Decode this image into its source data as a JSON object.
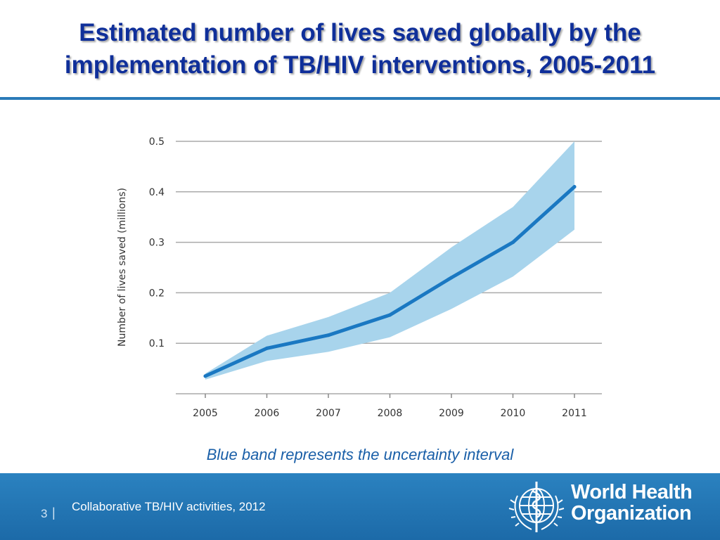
{
  "header": {
    "title_line1": "Estimated number of lives saved globally by the",
    "title_line2": "implementation of TB/HIV interventions, 2005-2011"
  },
  "chart_data": {
    "type": "line",
    "title": "Estimated number of lives saved globally by the implementation of TB/HIV interventions, 2005-2011",
    "xlabel": "",
    "ylabel": "Number of lives saved (millions)",
    "x": [
      "2005",
      "2006",
      "2007",
      "2008",
      "2009",
      "2010",
      "2011"
    ],
    "series": [
      {
        "name": "Estimate",
        "values": [
          0.035,
          0.09,
          0.116,
          0.156,
          0.23,
          0.3,
          0.41
        ]
      },
      {
        "name": "Uncertainty upper",
        "values": [
          0.04,
          0.115,
          0.152,
          0.2,
          0.29,
          0.37,
          0.5
        ]
      },
      {
        "name": "Uncertainty lower",
        "values": [
          0.028,
          0.065,
          0.083,
          0.112,
          0.168,
          0.232,
          0.325
        ]
      }
    ],
    "ylim": [
      0,
      0.5
    ],
    "yticks": [
      0.1,
      0.2,
      0.3,
      0.4,
      0.5
    ],
    "ytick_labels": [
      "0.1",
      "0.2",
      "0.3",
      "0.4",
      "0.5"
    ],
    "grid": true,
    "colors": {
      "line": "#1a78c2",
      "band": "#a8d4ec",
      "grid": "#aaaaaa"
    }
  },
  "caption": "Blue band represents the uncertainty interval",
  "footer": {
    "page_number": "3",
    "separator": "|",
    "text": "Collaborative TB/HIV activities, 2012",
    "org_line1": "World Health",
    "org_line2": "Organization"
  }
}
